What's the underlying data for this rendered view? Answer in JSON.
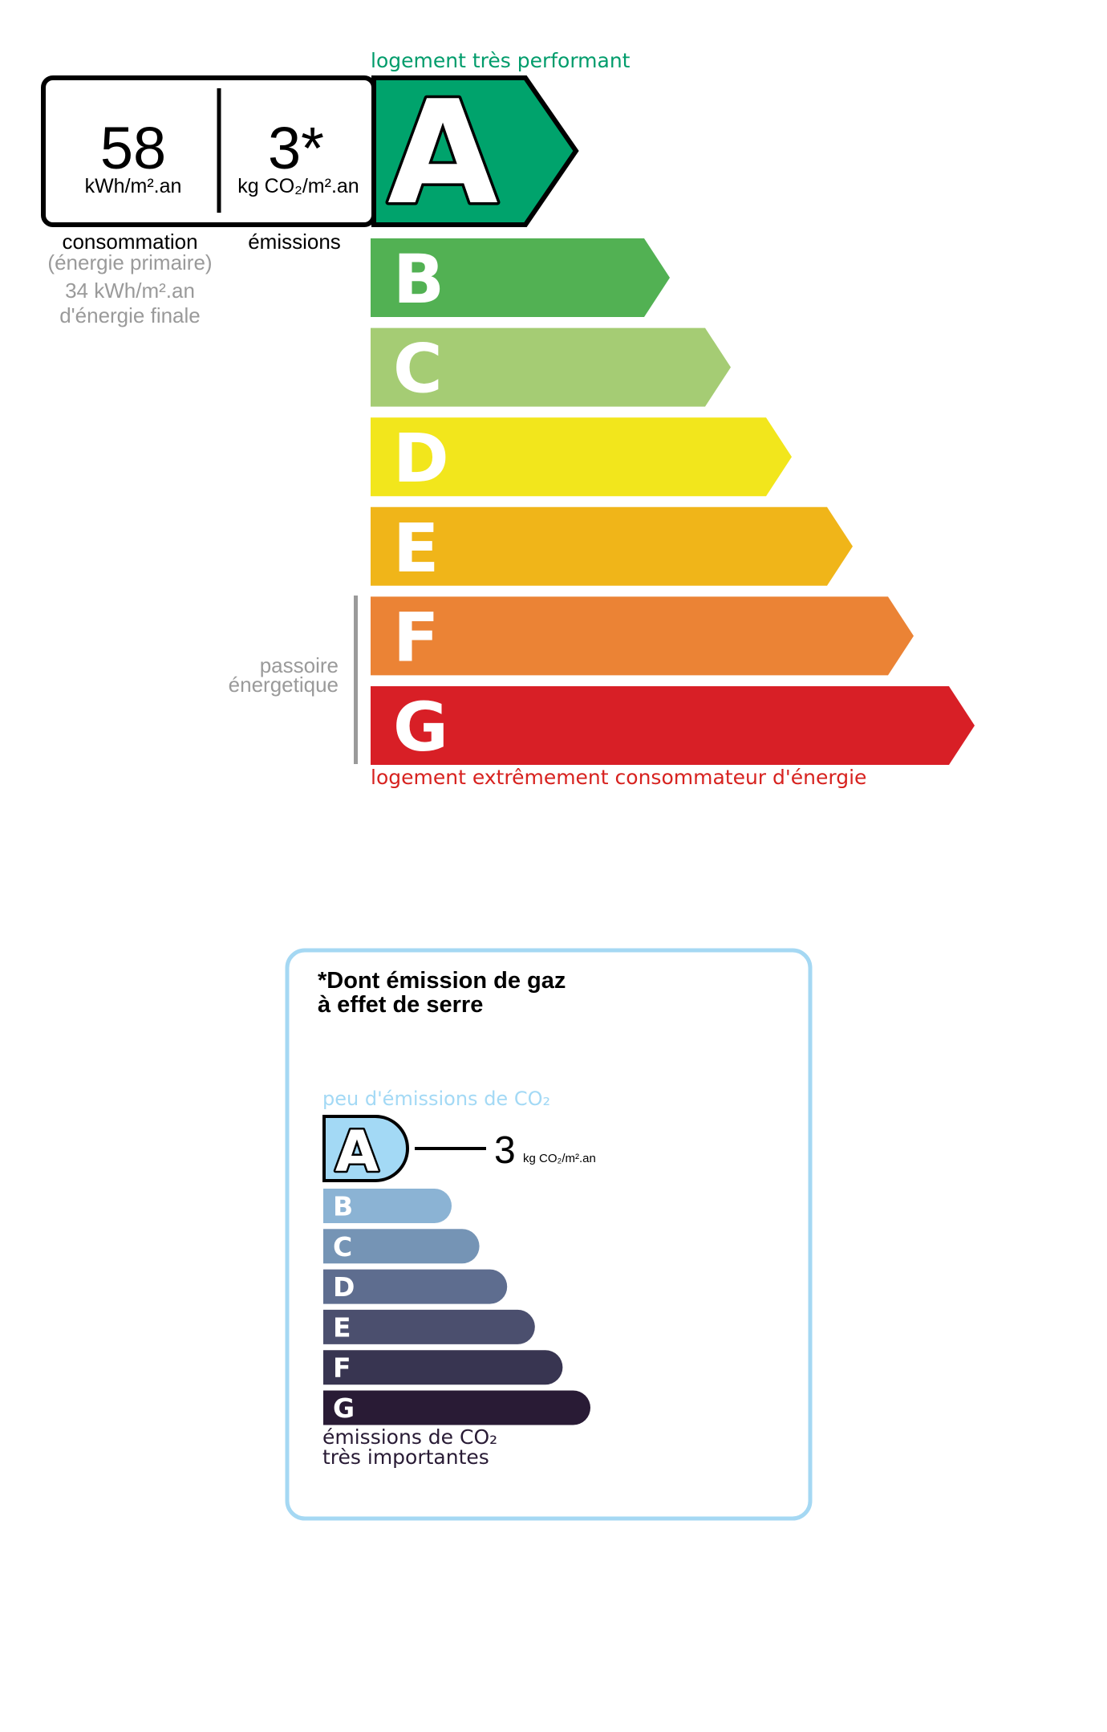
{
  "dpe": {
    "top_label": "logement très performant",
    "bottom_label": "logement extrêmement consommateur d'énergie",
    "consumption_value": "58",
    "consumption_unit": "kWh/m².an",
    "emission_value": "3*",
    "emission_unit": "kg CO₂/m².an",
    "consumption_caption": "consommation",
    "primary_caption": "(énergie primaire)",
    "final_value": "34 kWh/m².an",
    "final_caption": "d'énergie finale",
    "emission_caption": "émissions",
    "current_class": "A",
    "passoire_line1": "passoire",
    "passoire_line2": "énergetique",
    "classes": [
      {
        "letter": "A",
        "color": "#00a36c"
      },
      {
        "letter": "B",
        "color": "#52b153"
      },
      {
        "letter": "C",
        "color": "#a5cc74"
      },
      {
        "letter": "D",
        "color": "#f2e61c"
      },
      {
        "letter": "E",
        "color": "#f0b519"
      },
      {
        "letter": "F",
        "color": "#eb8335"
      },
      {
        "letter": "G",
        "color": "#d81f26"
      }
    ],
    "colors": {
      "top_label": "#009c6b",
      "bottom_label": "#d7221f",
      "grey": "#9a9a9a"
    }
  },
  "ges": {
    "title_line1": "*Dont émission de gaz",
    "title_line2": "à effet de serre",
    "top_label": "peu d'émissions de CO₂",
    "bottom_line1": "émissions de CO₂",
    "bottom_line2": "très importantes",
    "current_class": "A",
    "value": "3",
    "unit": "kg CO₂/m².an",
    "classes": [
      {
        "letter": "A",
        "color": "#a3d9f5"
      },
      {
        "letter": "B",
        "color": "#8bb3d4"
      },
      {
        "letter": "C",
        "color": "#7594b5"
      },
      {
        "letter": "D",
        "color": "#5e6d8f"
      },
      {
        "letter": "E",
        "color": "#4b4f6e"
      },
      {
        "letter": "F",
        "color": "#383551"
      },
      {
        "letter": "G",
        "color": "#291b35"
      }
    ],
    "colors": {
      "border": "#a5d8f3",
      "top_label": "#a3d9f5"
    }
  }
}
